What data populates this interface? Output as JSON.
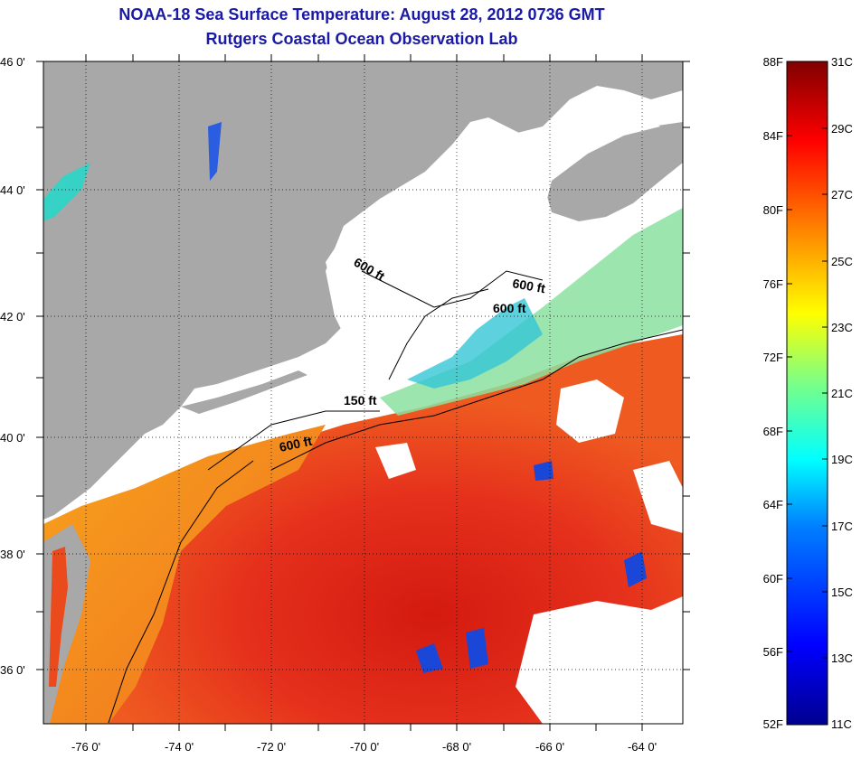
{
  "title": "NOAA-18 Sea Surface Temperature:  August 28, 2012 0736 GMT",
  "subtitle": "Rutgers Coastal Ocean Observation Lab",
  "map": {
    "lat_labels": [
      "46 0'",
      "44 0'",
      "42 0'",
      "40 0'",
      "38 0'",
      "36 0'"
    ],
    "lon_labels": [
      "-76 0'",
      "-74 0'",
      "-72 0'",
      "-70 0'",
      "-68 0'",
      "-66 0'",
      "-64 0'"
    ],
    "depth_labels": [
      "600 ft",
      "600 ft",
      "600 ft",
      "150 ft",
      "600 ft"
    ],
    "colors": {
      "land": "#a8a8a8",
      "cloud": "#ffffff",
      "warm": "#e8321e",
      "hot": "#d81a10",
      "orange": "#f58a1e",
      "cool": "#39c9d8",
      "cold": "#1a3bd6"
    }
  },
  "colorbar": {
    "f_labels": [
      "88F",
      "84F",
      "80F",
      "76F",
      "72F",
      "68F",
      "64F",
      "60F",
      "56F",
      "52F"
    ],
    "c_labels": [
      "31C",
      "29C",
      "27C",
      "25C",
      "23C",
      "21C",
      "19C",
      "17C",
      "15C",
      "13C",
      "11C"
    ]
  }
}
